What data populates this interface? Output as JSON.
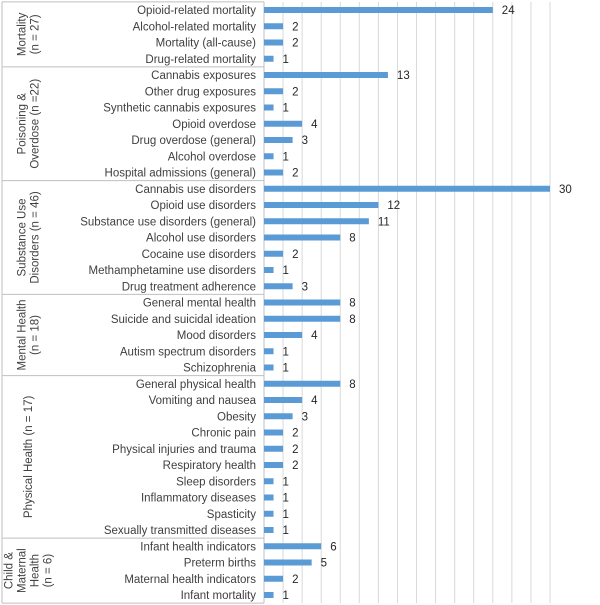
{
  "chart_data": {
    "type": "bar",
    "orientation": "horizontal",
    "bar_color": "#5b9bd5",
    "grid": true,
    "xlim": [
      0,
      30
    ],
    "groups": [
      {
        "label": [
          "Mortality",
          "(n = 27)"
        ],
        "categories": [
          "Opioid-related mortality",
          "Alcohol-related mortality",
          "Mortality (all-cause)",
          "Drug-related mortality"
        ],
        "values": [
          24,
          2,
          2,
          1
        ]
      },
      {
        "label": [
          "Poisoning &",
          "Overdose (n =22)"
        ],
        "categories": [
          "Cannabis exposures",
          "Other drug exposures",
          "Synthetic cannabis exposures",
          "Opioid overdose",
          "Drug overdose (general)",
          "Alcohol overdose",
          "Hospital admissions (general)"
        ],
        "values": [
          13,
          2,
          1,
          4,
          3,
          1,
          2
        ]
      },
      {
        "label": [
          "Substance Use",
          "Disorders (n = 46)"
        ],
        "categories": [
          "Cannabis use disorders",
          "Opioid use disorders",
          "Substance use disorders (general)",
          "Alcohol use disorders",
          "Cocaine use disorders",
          "Methamphetamine use disorders",
          "Drug treatment adherence"
        ],
        "values": [
          30,
          12,
          11,
          8,
          2,
          1,
          3
        ]
      },
      {
        "label": [
          "Mental Health",
          "(n = 18)"
        ],
        "categories": [
          "General mental health",
          "Suicide and suicidal ideation",
          "Mood disorders",
          "Autism spectrum disorders",
          "Schizophrenia"
        ],
        "values": [
          8,
          8,
          4,
          1,
          1
        ]
      },
      {
        "label": [
          "Physical Health (n = 17)"
        ],
        "categories": [
          "General physical health",
          "Vomiting and nausea",
          "Obesity",
          "Chronic pain",
          "Physical injuries and trauma",
          "Respiratory health",
          "Sleep disorders",
          "Inflammatory diseases",
          "Spasticity",
          "Sexually transmitted diseases"
        ],
        "values": [
          8,
          4,
          3,
          2,
          2,
          2,
          1,
          1,
          1,
          1
        ]
      },
      {
        "label": [
          "Child &",
          "Maternal",
          "Health",
          "(n = 6)"
        ],
        "categories": [
          "Infant health indicators",
          "Preterm births",
          "Maternal health indicators",
          "Infant mortality"
        ],
        "values": [
          6,
          5,
          2,
          1
        ]
      }
    ]
  }
}
